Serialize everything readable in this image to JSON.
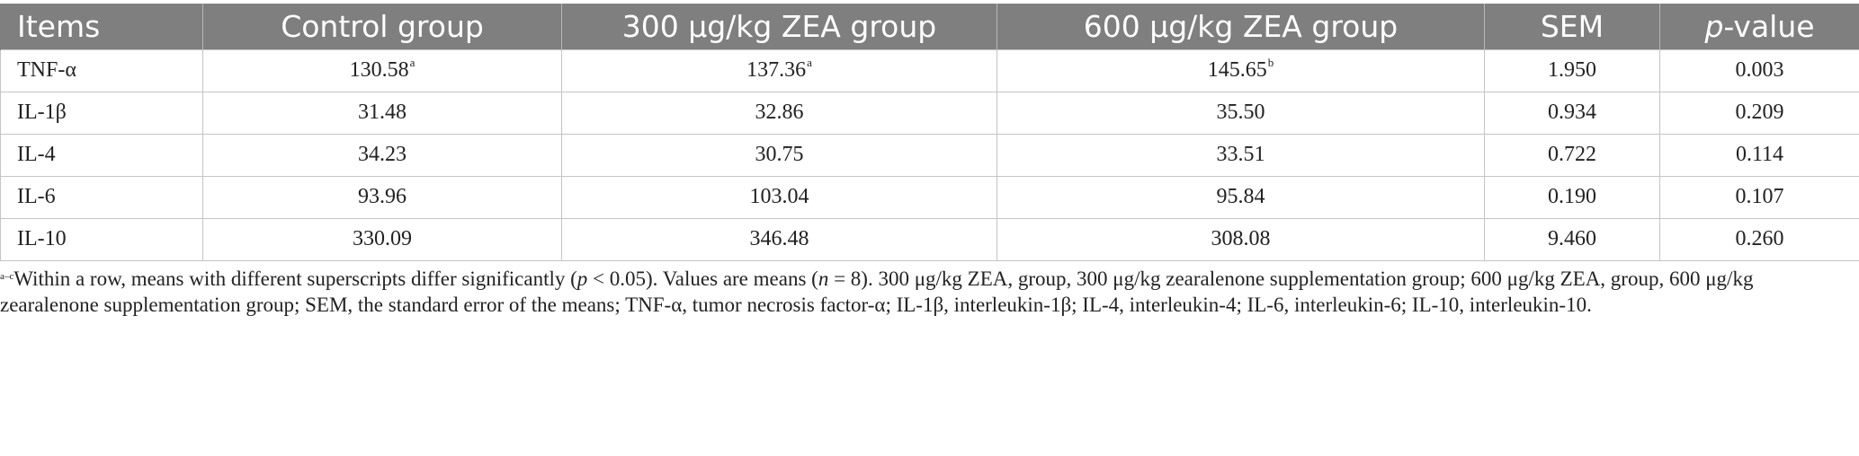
{
  "table": {
    "headers": [
      "Items",
      "Control group",
      "300 μg/kg ZEA group",
      "600 μg/kg ZEA group",
      "SEM",
      "p-value"
    ],
    "header_pvalue": {
      "italic": "p",
      "rest": "-value"
    },
    "rows": [
      {
        "item": "TNF-α",
        "control": "130.58",
        "control_sup": "a",
        "zea300": "137.36",
        "zea300_sup": "a",
        "zea600": "145.65",
        "zea600_sup": "b",
        "sem": "1.950",
        "p": "0.003"
      },
      {
        "item": "IL-1β",
        "control": "31.48",
        "zea300": "32.86",
        "zea600": "35.50",
        "sem": "0.934",
        "p": "0.209"
      },
      {
        "item": "IL-4",
        "control": "34.23",
        "zea300": "30.75",
        "zea600": "33.51",
        "sem": "0.722",
        "p": "0.114"
      },
      {
        "item": "IL-6",
        "control": "93.96",
        "zea300": "103.04",
        "zea600": "95.84",
        "sem": "0.190",
        "p": "0.107"
      },
      {
        "item": "IL-10",
        "control": "330.09",
        "zea300": "346.48",
        "zea600": "308.08",
        "sem": "9.460",
        "p": "0.260"
      }
    ]
  },
  "footnote": {
    "sup": "a–c",
    "part1": "Within a row, means with different superscripts differ significantly (",
    "p1": "p",
    "part2": " < 0.05). Values are means (",
    "n": "n",
    "part3": " = 8). 300 μg/kg ZEA, group, 300 μg/kg zearalenone supplementation group; 600 μg/kg ZEA, group, 600 μg/kg zearalenone supplementation group; SEM, the standard error of the means; TNF-α, tumor necrosis factor-α; IL-1β, interleukin-1β; IL-4, interleukin-4; IL-6, interleukin-6; IL-10, interleukin-10."
  }
}
